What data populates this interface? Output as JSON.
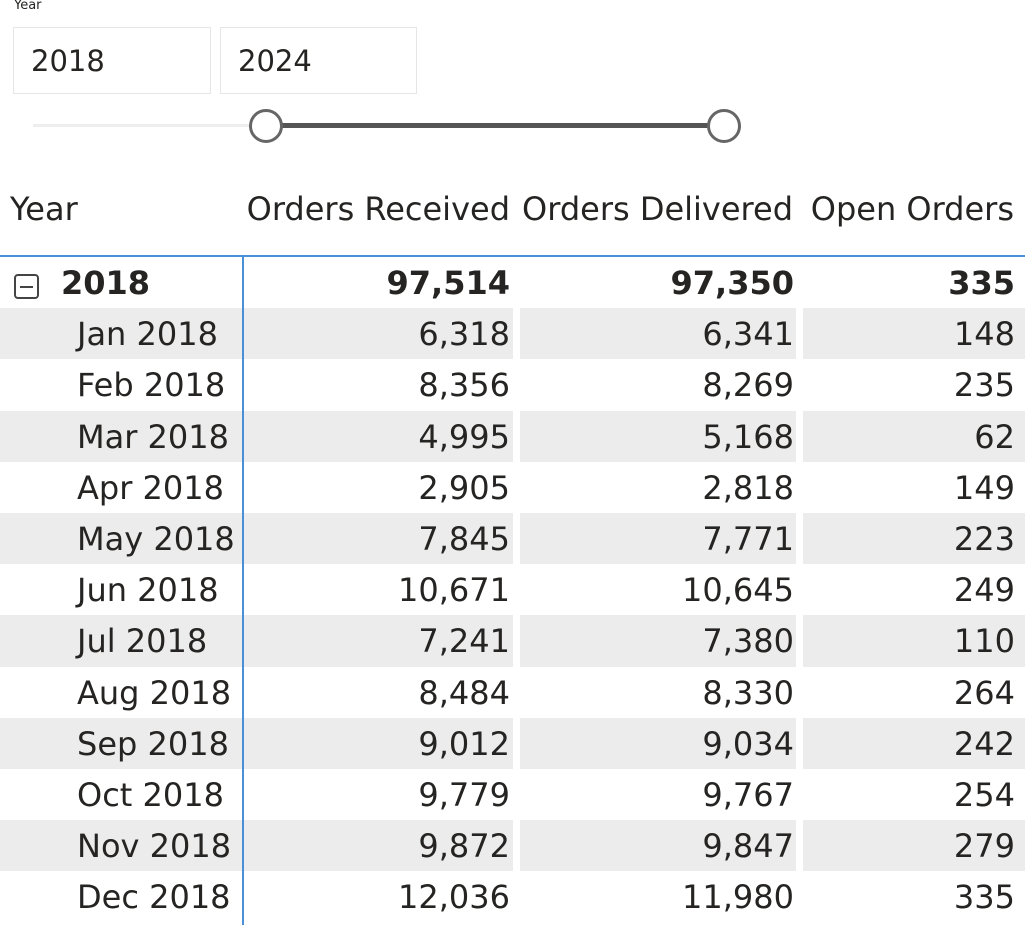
{
  "slicer": {
    "title": "Year",
    "start": "2018",
    "end": "2024"
  },
  "table": {
    "columns": [
      "Year",
      "Orders Received",
      "Orders Delivered",
      "Open Orders"
    ],
    "group": {
      "label": "2018",
      "orders_received": "97,514",
      "orders_delivered": "97,350",
      "open_orders": "335"
    },
    "rows": [
      {
        "label": "Jan 2018",
        "orders_received": "6,318",
        "orders_delivered": "6,341",
        "open_orders": "148"
      },
      {
        "label": "Feb 2018",
        "orders_received": "8,356",
        "orders_delivered": "8,269",
        "open_orders": "235"
      },
      {
        "label": "Mar 2018",
        "orders_received": "4,995",
        "orders_delivered": "5,168",
        "open_orders": "62"
      },
      {
        "label": "Apr 2018",
        "orders_received": "2,905",
        "orders_delivered": "2,818",
        "open_orders": "149"
      },
      {
        "label": "May 2018",
        "orders_received": "7,845",
        "orders_delivered": "7,771",
        "open_orders": "223"
      },
      {
        "label": "Jun 2018",
        "orders_received": "10,671",
        "orders_delivered": "10,645",
        "open_orders": "249"
      },
      {
        "label": "Jul 2018",
        "orders_received": "7,241",
        "orders_delivered": "7,380",
        "open_orders": "110"
      },
      {
        "label": "Aug 2018",
        "orders_received": "8,484",
        "orders_delivered": "8,330",
        "open_orders": "264"
      },
      {
        "label": "Sep 2018",
        "orders_received": "9,012",
        "orders_delivered": "9,034",
        "open_orders": "242"
      },
      {
        "label": "Oct 2018",
        "orders_received": "9,779",
        "orders_delivered": "9,767",
        "open_orders": "254"
      },
      {
        "label": "Nov 2018",
        "orders_received": "9,872",
        "orders_delivered": "9,847",
        "open_orders": "279"
      },
      {
        "label": "Dec 2018",
        "orders_received": "12,036",
        "orders_delivered": "11,980",
        "open_orders": "335"
      }
    ]
  },
  "colors": {
    "accent": "#4a90d9",
    "slider_fill": "#555555",
    "row_alt": "#ececec"
  },
  "icons": {
    "collapse": "collapse-minus-icon",
    "slider_handle": "circle-handle"
  }
}
